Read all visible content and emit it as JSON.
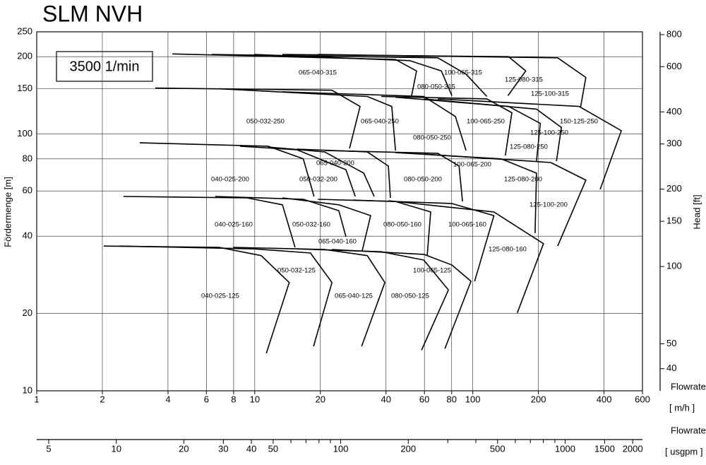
{
  "chart_data": {
    "type": "line",
    "title": "SLM NVH",
    "speed_label": "3500 1/min",
    "y_label": "Fördermenge [m]",
    "y2_label": "Head [ft]",
    "x_label": "Flowrate",
    "x_unit": "[ m/h ]",
    "x2_label": "Flowrate",
    "x2_unit": "[ usgpm ]",
    "log_x": true,
    "log_y": true,
    "grid": true,
    "color": "#000000",
    "xlim": [
      1,
      600
    ],
    "xticks": [
      1,
      2,
      4,
      6,
      8,
      10,
      20,
      40,
      60,
      80,
      100,
      200,
      400,
      600
    ],
    "ylim": [
      10,
      250
    ],
    "yticks": [
      10,
      20,
      40,
      60,
      80,
      100,
      150,
      200,
      250
    ],
    "y2lim": [
      32.81,
      820.2
    ],
    "y2ticks": [
      40,
      50,
      100,
      150,
      200,
      300,
      400,
      600,
      800
    ],
    "x2lim": [
      4.42,
      2211
    ],
    "x2ticks": [
      5,
      10,
      20,
      30,
      40,
      50,
      100,
      200,
      500,
      1000,
      1500,
      2000
    ],
    "x2minor_ticks": [
      60,
      70,
      80,
      90,
      300,
      400,
      600,
      700,
      800,
      900
    ],
    "series": [
      {
        "name": "065-040-315",
        "x": [
          4.19,
          44.2,
          55.2,
          52.4
        ],
        "values": [
          205,
          195,
          176,
          141
        ]
      },
      {
        "name": "100-065-315",
        "x": [
          6.35,
          69.1,
          93.1,
          116
        ],
        "values": [
          204,
          198,
          171,
          140
        ]
      },
      {
        "name": "080-050-315",
        "x": [
          9.94,
          51.3,
          71.8,
          80.2
        ],
        "values": [
          204,
          193,
          176,
          141
        ]
      },
      {
        "name": "125-080-315",
        "x": [
          13.4,
          146,
          175,
          145
        ],
        "values": [
          204,
          200,
          176,
          141
        ]
      },
      {
        "name": "125-100-315",
        "x": [
          19.5,
          245,
          330,
          312
        ],
        "values": [
          204,
          198,
          166,
          127
        ]
      },
      {
        "name": "050-032-250",
        "x": [
          3.5,
          22.6,
          30.4,
          27.2
        ],
        "values": [
          151,
          148,
          128,
          87.9
        ]
      },
      {
        "name": "065-040-250",
        "x": [
          6.85,
          32.8,
          42.5,
          44.2
        ],
        "values": [
          150,
          140,
          128,
          86.2
        ]
      },
      {
        "name": "080-050-250",
        "x": [
          13.4,
          59.6,
          83.2,
          93.1
        ],
        "values": [
          146,
          140,
          117,
          86.2
        ]
      },
      {
        "name": "100-065-250",
        "x": [
          38,
          116,
          151,
          141
        ],
        "values": [
          140,
          137,
          121,
          82.5
        ]
      },
      {
        "name": "125-080-250",
        "x": [
          44.2,
          146,
          204,
          196
        ],
        "values": [
          139,
          128,
          110,
          78.4
        ]
      },
      {
        "name": "125-100-250",
        "x": [
          59.6,
          196,
          255,
          242
        ],
        "values": [
          137,
          125,
          106,
          78.4
        ]
      },
      {
        "name": "150-125-250",
        "x": [
          69.1,
          307,
          480,
          384
        ],
        "values": [
          137,
          128,
          103,
          60.9
        ]
      },
      {
        "name": "040-025-200",
        "x": [
          2.97,
          11.5,
          16.7,
          18.7
        ],
        "values": [
          92.4,
          89.6,
          80,
          57.1
        ]
      },
      {
        "name": "050-032-200",
        "x": [
          8.56,
          15.6,
          26.2,
          28.9
        ],
        "values": [
          89.6,
          86.8,
          72.6,
          57.1
        ]
      },
      {
        "name": "065-040-200",
        "x": [
          11.5,
          20.9,
          31.6,
          35.3
        ],
        "values": [
          89,
          85.2,
          70.4,
          57.1
        ]
      },
      {
        "name": "080-050-200",
        "x": [
          15.6,
          32.8,
          41,
          41.9
        ],
        "values": [
          87.3,
          85.2,
          75,
          56.4
        ]
      },
      {
        "name": "100-065-200",
        "x": [
          20.9,
          69.1,
          86.5,
          89.7
        ],
        "values": [
          86.2,
          84.1,
          75,
          54.6
        ]
      },
      {
        "name": "125-080-200",
        "x": [
          44.2,
          135,
          196,
          193
        ],
        "values": [
          84.6,
          80,
          70.4,
          41.1
        ]
      },
      {
        "name": "125-100-200",
        "x": [
          59.6,
          228,
          330,
          245
        ],
        "values": [
          83.5,
          77.4,
          66.1,
          36.6
        ]
      },
      {
        "name": "040-025-160",
        "x": [
          2.5,
          9.22,
          13.4,
          15.3
        ],
        "values": [
          57.1,
          56.4,
          53,
          36.2
        ]
      },
      {
        "name": "050-032-160",
        "x": [
          6.59,
          16.7,
          24.3,
          26.2
        ],
        "values": [
          57.1,
          55.7,
          50.3,
          39.8
        ]
      },
      {
        "name": "065-040-160",
        "x": [
          13.4,
          24.3,
          34,
          31.1
        ],
        "values": [
          56.4,
          53,
          48.1,
          35.1
        ]
      },
      {
        "name": "080-050-160",
        "x": [
          19.5,
          44.2,
          64.1,
          61.8
        ],
        "values": [
          55.7,
          54.6,
          49.7,
          33.6
        ]
      },
      {
        "name": "100-065-160",
        "x": [
          28.2,
          80.2,
          125,
          102
        ],
        "values": [
          55.3,
          53.6,
          48.1,
          26.7
        ]
      },
      {
        "name": "125-080-160",
        "x": [
          41,
          125,
          211,
          160
        ],
        "values": [
          55,
          49.7,
          37.4,
          20.1
        ]
      },
      {
        "name": "040-025-125",
        "x": [
          2.03,
          6.85,
          10.7,
          14.4,
          11.3
        ],
        "values": [
          36.6,
          36.2,
          33.6,
          26.4,
          14.0
        ]
      },
      {
        "name": "050-032-125",
        "x": [
          2.41,
          9.94,
          18,
          22.6,
          18.6
        ],
        "values": [
          36.6,
          35.7,
          34.4,
          26.4,
          14.9
        ]
      },
      {
        "name": "065-040-125",
        "x": [
          7.95,
          20.9,
          32.8,
          39.5,
          30.9
        ],
        "values": [
          36.2,
          35.5,
          33.6,
          26.4,
          14.9
        ]
      },
      {
        "name": "080-050-125",
        "x": [
          15.6,
          38,
          59.6,
          77.3,
          58.2
        ],
        "values": [
          35.7,
          34.8,
          32.3,
          24.7,
          14.4
        ]
      },
      {
        "name": "100-065-125",
        "x": [
          22.6,
          59.6,
          80.2,
          98.1,
          74.5
        ],
        "values": [
          35.5,
          34,
          30.9,
          26.7,
          14.6
        ]
      }
    ]
  }
}
